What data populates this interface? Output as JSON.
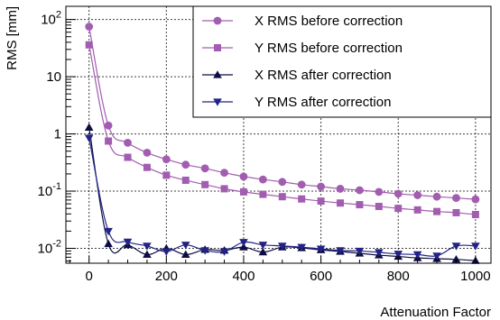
{
  "chart_data": {
    "type": "line",
    "xlabel": "Attenuation Factor",
    "ylabel": "RMS [mm]",
    "x_scale": "linear",
    "y_scale": "log",
    "xlim": [
      -60,
      1040
    ],
    "ylim": [
      0.0055,
      170
    ],
    "x_ticks": [
      "0",
      "200",
      "400",
      "600",
      "800",
      "1000"
    ],
    "y_ticks": [
      "10^-2",
      "10^-1",
      "1",
      "10",
      "10^2"
    ],
    "grid": true,
    "legend_position": "top-right",
    "x": [
      0,
      50,
      100,
      150,
      200,
      250,
      300,
      350,
      400,
      450,
      500,
      550,
      600,
      650,
      700,
      750,
      800,
      850,
      900,
      950,
      1000
    ],
    "series": [
      {
        "name": "X RMS before correction",
        "marker": "circle",
        "color": "#a25db0",
        "values": [
          75,
          1.4,
          0.7,
          0.47,
          0.36,
          0.29,
          0.25,
          0.21,
          0.18,
          0.16,
          0.145,
          0.13,
          0.12,
          0.11,
          0.104,
          0.097,
          0.09,
          0.085,
          0.08,
          0.076,
          0.072
        ]
      },
      {
        "name": "Y RMS before correction",
        "marker": "square",
        "color": "#a25db0",
        "values": [
          36,
          0.75,
          0.39,
          0.26,
          0.19,
          0.155,
          0.13,
          0.11,
          0.097,
          0.088,
          0.08,
          0.073,
          0.067,
          0.062,
          0.058,
          0.054,
          0.05,
          0.047,
          0.044,
          0.042,
          0.039
        ]
      },
      {
        "name": "X RMS after correction",
        "marker": "triangle-up",
        "color": "#0d0d44",
        "values": [
          1.3,
          0.012,
          0.0115,
          0.0078,
          0.01,
          0.0078,
          0.0095,
          0.0092,
          0.0105,
          0.0086,
          0.0105,
          0.0102,
          0.0094,
          0.0088,
          0.0082,
          0.0076,
          0.0072,
          0.0068,
          0.0066,
          0.0064,
          0.0061
        ]
      },
      {
        "name": "Y RMS after correction",
        "marker": "triangle-down",
        "color": "#232387",
        "values": [
          0.85,
          0.02,
          0.013,
          0.011,
          0.0088,
          0.0115,
          0.0092,
          0.0088,
          0.0128,
          0.0115,
          0.011,
          0.0105,
          0.0098,
          0.0092,
          0.009,
          0.0085,
          0.008,
          0.0078,
          0.0074,
          0.011,
          0.011
        ]
      }
    ]
  }
}
